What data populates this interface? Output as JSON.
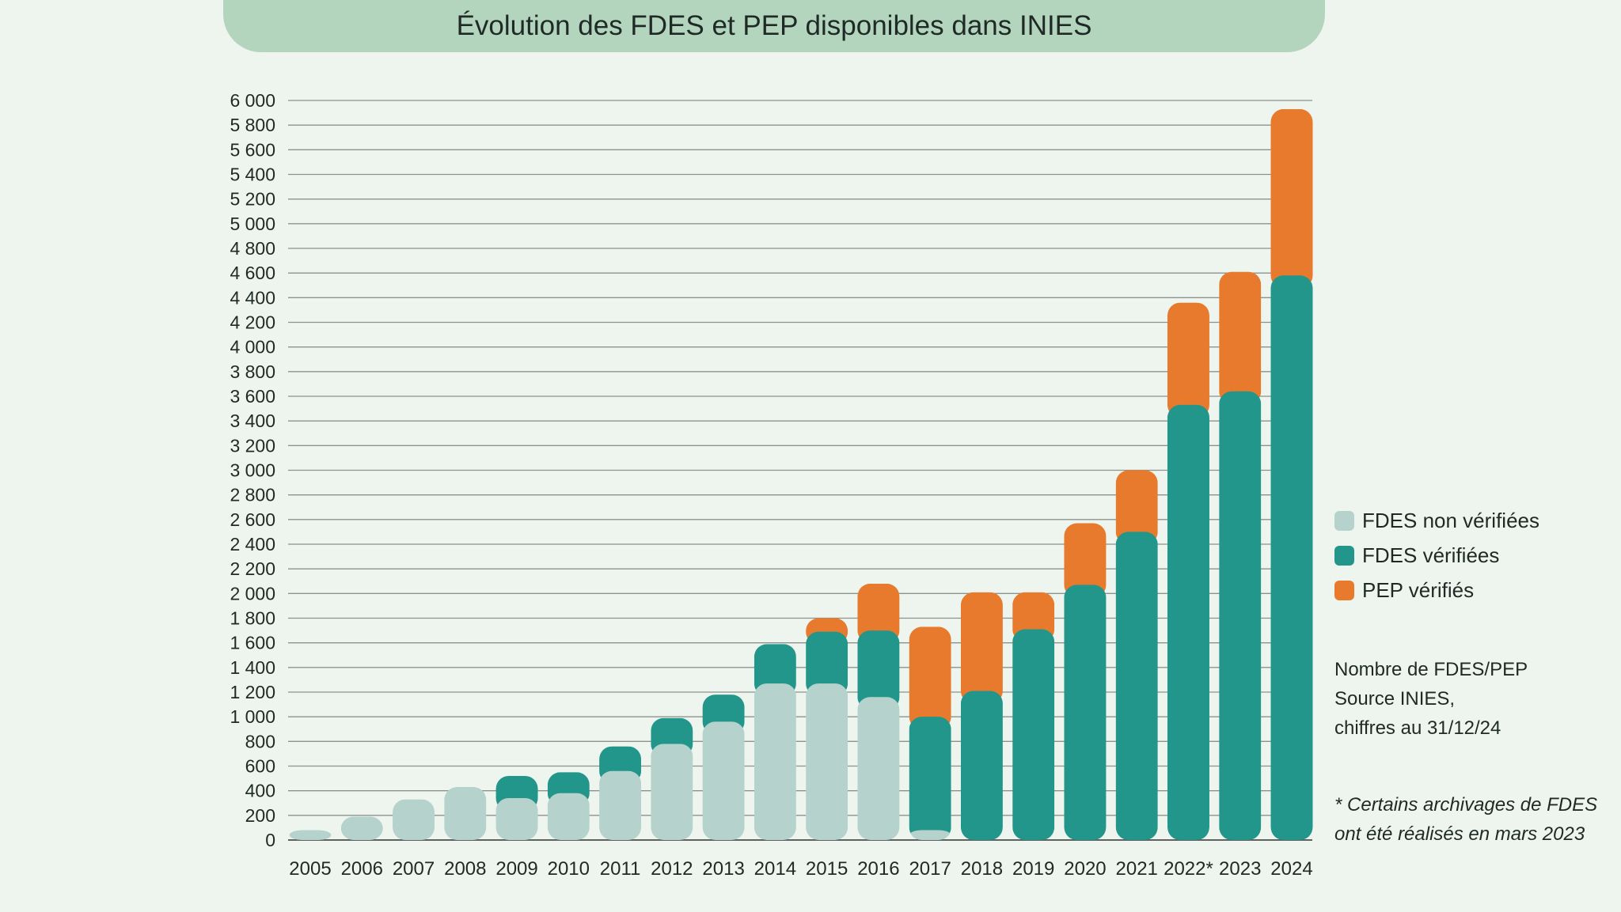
{
  "chart_data": {
    "type": "bar",
    "stacked": true,
    "title": "Évolution des FDES et PEP disponibles dans INIES",
    "xlabel": "",
    "ylabel": "",
    "ylim": [
      0,
      6000
    ],
    "y_ticks": [
      0,
      200,
      400,
      600,
      800,
      1000,
      1200,
      1400,
      1600,
      1800,
      2000,
      2200,
      2400,
      2600,
      2800,
      3000,
      3200,
      3400,
      3600,
      3800,
      4000,
      4200,
      4400,
      4600,
      4800,
      5000,
      5200,
      5400,
      5600,
      5800,
      6000
    ],
    "y_tick_labels": [
      "0",
      "200",
      "400",
      "600",
      "800",
      "1 000",
      "1 200",
      "1 400",
      "1 600",
      "1 800",
      "2 000",
      "2 200",
      "2 400",
      "2 600",
      "2 800",
      "3 000",
      "3 200",
      "3 400",
      "3 600",
      "3 800",
      "4 000",
      "4 200",
      "4 400",
      "4 600",
      "4 800",
      "5 000",
      "5 200",
      "5 400",
      "5 600",
      "5 800",
      "6 000"
    ],
    "grid": true,
    "legend_position": "right",
    "categories": [
      "2005",
      "2006",
      "2007",
      "2008",
      "2009",
      "2010",
      "2011",
      "2012",
      "2013",
      "2014",
      "2015",
      "2016",
      "2017",
      "2018",
      "2019",
      "2020",
      "2021",
      "2022*",
      "2023",
      "2024"
    ],
    "series": [
      {
        "name": "FDES non vérifiées",
        "color": "#b5d3cc",
        "values": [
          80,
          190,
          330,
          430,
          340,
          380,
          560,
          780,
          960,
          1270,
          1270,
          1160,
          80,
          0,
          0,
          0,
          0,
          0,
          0,
          0
        ]
      },
      {
        "name": "FDES vérifiées",
        "color": "#22968a",
        "values": [
          0,
          0,
          0,
          0,
          180,
          170,
          200,
          210,
          220,
          320,
          420,
          540,
          920,
          1210,
          1710,
          2070,
          2500,
          3530,
          3640,
          4580
        ]
      },
      {
        "name": "PEP vérifiés",
        "color": "#e87a2e",
        "values": [
          0,
          0,
          0,
          0,
          0,
          0,
          0,
          0,
          0,
          0,
          110,
          380,
          730,
          800,
          300,
          500,
          500,
          830,
          970,
          1350
        ]
      }
    ]
  },
  "legend": {
    "items": [
      {
        "label": "FDES non vérifiées",
        "color": "#b5d3cc"
      },
      {
        "label": "FDES vérifiées",
        "color": "#22968a"
      },
      {
        "label": "PEP vérifiés",
        "color": "#e87a2e"
      }
    ]
  },
  "note": {
    "line1": "Nombre de FDES/PEP",
    "line2": "Source INIES,",
    "line3": "chiffres au 31/12/24"
  },
  "footnote": {
    "line1": "* Certains archivages de FDES",
    "line2": "ont été réalisés en mars 2023"
  }
}
